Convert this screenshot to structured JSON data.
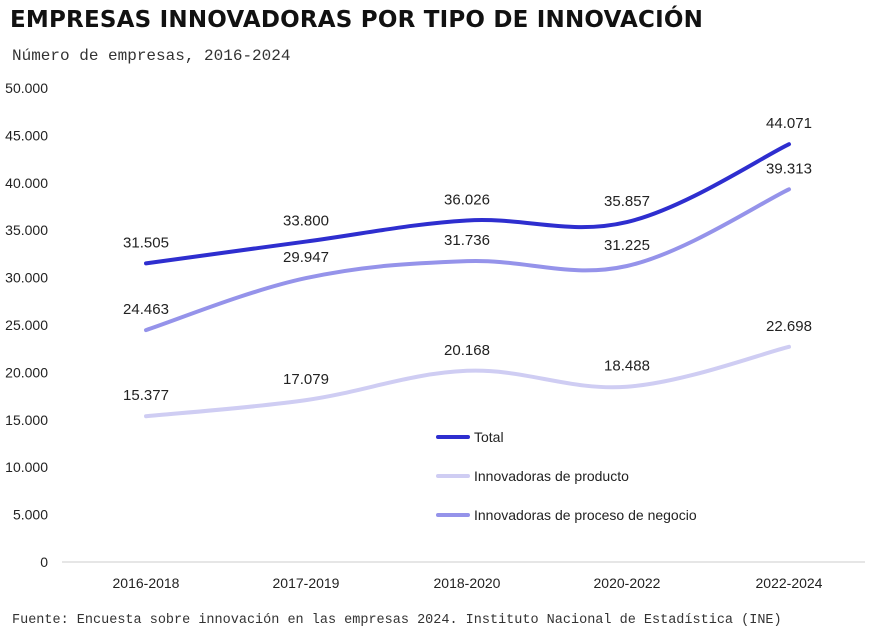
{
  "title": "EMPRESAS INNOVADORAS POR TIPO DE INNOVACIÓN",
  "subtitle": "Número de empresas, 2016-2024",
  "source": "Fuente: Encuesta sobre innovación en las empresas 2024. Instituto Nacional de Estadística (INE)",
  "chart_data": {
    "type": "line",
    "categories": [
      "2016-2018",
      "2017-2019",
      "2018-2020",
      "2020-2022",
      "2022-2024"
    ],
    "ylim": [
      0,
      50000
    ],
    "yticks": [
      0,
      5000,
      10000,
      15000,
      20000,
      25000,
      30000,
      35000,
      40000,
      45000,
      50000
    ],
    "ytick_labels": [
      "0",
      "5.000",
      "10.000",
      "15.000",
      "20.000",
      "25.000",
      "30.000",
      "35.000",
      "40.000",
      "45.000",
      "50.000"
    ],
    "grid": false,
    "legend_position": "bottom-center",
    "series": [
      {
        "name": "Total",
        "color": "#2e2ecf",
        "values": [
          31505,
          33800,
          36026,
          35857,
          44071
        ],
        "labels": [
          "31.505",
          "33.800",
          "36.026",
          "35.857",
          "44.071"
        ]
      },
      {
        "name": "Innovadoras de producto",
        "color": "#cfcdf3",
        "values": [
          15377,
          17079,
          20168,
          18488,
          22698
        ],
        "labels": [
          "15.377",
          "17.079",
          "20.168",
          "18.488",
          "22.698"
        ]
      },
      {
        "name": "Innovadoras de proceso de negocio",
        "color": "#9593ea",
        "values": [
          24463,
          29947,
          31736,
          31225,
          39313
        ],
        "labels": [
          "24.463",
          "29.947",
          "31.736",
          "31.225",
          "39.313"
        ]
      }
    ]
  }
}
